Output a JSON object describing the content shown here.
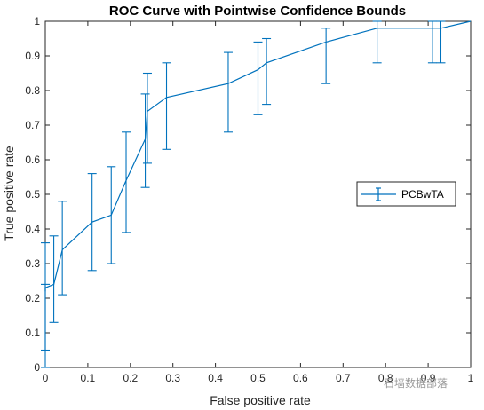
{
  "chart_data": {
    "type": "line",
    "title": "ROC Curve with Pointwise Confidence Bounds",
    "xlabel": "False positive rate",
    "ylabel": "True positive rate",
    "xlim": [
      0,
      1
    ],
    "ylim": [
      0,
      1
    ],
    "x_ticks": [
      "0",
      "0.1",
      "0.2",
      "0.3",
      "0.4",
      "0.5",
      "0.6",
      "0.7",
      "0.8",
      "0.9",
      "1"
    ],
    "y_ticks": [
      "0",
      "0.1",
      "0.2",
      "0.3",
      "0.4",
      "0.5",
      "0.6",
      "0.7",
      "0.8",
      "0.9",
      "1"
    ],
    "grid": false,
    "legend_position": "right",
    "series": [
      {
        "name": "PCBwTA",
        "color": "#0072BD",
        "points": [
          {
            "x": 0.0,
            "y": 0.22,
            "lo": 0.05,
            "hi": 0.36
          },
          {
            "x": 0.0,
            "y": 0.23,
            "lo": 0.0,
            "hi": 0.24
          },
          {
            "x": 0.02,
            "y": 0.24,
            "lo": 0.13,
            "hi": 0.38
          },
          {
            "x": 0.04,
            "y": 0.34,
            "lo": 0.21,
            "hi": 0.48
          },
          {
            "x": 0.11,
            "y": 0.42,
            "lo": 0.28,
            "hi": 0.56
          },
          {
            "x": 0.155,
            "y": 0.44,
            "lo": 0.3,
            "hi": 0.58
          },
          {
            "x": 0.19,
            "y": 0.54,
            "lo": 0.39,
            "hi": 0.68
          },
          {
            "x": 0.235,
            "y": 0.66,
            "lo": 0.52,
            "hi": 0.79
          },
          {
            "x": 0.24,
            "y": 0.74,
            "lo": 0.59,
            "hi": 0.85
          },
          {
            "x": 0.285,
            "y": 0.78,
            "lo": 0.63,
            "hi": 0.88
          },
          {
            "x": 0.43,
            "y": 0.82,
            "lo": 0.68,
            "hi": 0.91
          },
          {
            "x": 0.5,
            "y": 0.86,
            "lo": 0.73,
            "hi": 0.94
          },
          {
            "x": 0.52,
            "y": 0.88,
            "lo": 0.76,
            "hi": 0.95
          },
          {
            "x": 0.66,
            "y": 0.94,
            "lo": 0.82,
            "hi": 0.98
          },
          {
            "x": 0.78,
            "y": 0.98,
            "lo": 0.88,
            "hi": 1.0
          },
          {
            "x": 0.91,
            "y": 0.98,
            "lo": 0.88,
            "hi": 1.0
          },
          {
            "x": 0.93,
            "y": 0.98,
            "lo": 0.88,
            "hi": 1.0
          },
          {
            "x": 1.0,
            "y": 1.0,
            "lo": 1.0,
            "hi": 1.0
          }
        ]
      }
    ]
  },
  "watermark": {
    "text": "石墙数据部落"
  }
}
